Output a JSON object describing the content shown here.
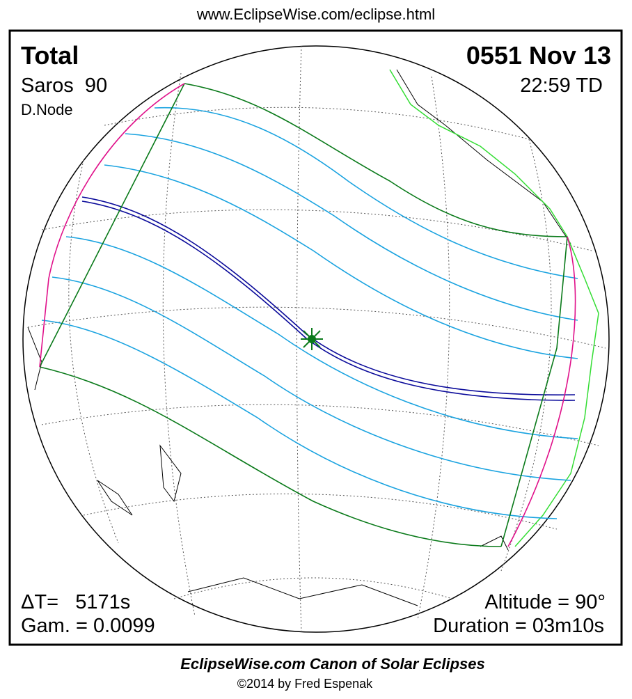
{
  "header": {
    "url": "www.EclipseWise.com/eclipse.html"
  },
  "panel": {
    "eclipse_type": "Total",
    "saros": "Saros  90",
    "node": "D.Node",
    "date": "0551 Nov 13",
    "time": "22:59 TD",
    "delta_t": "ΔT=   5171s",
    "gamma": "Gam. = 0.0099",
    "altitude": "Altitude = 90°",
    "duration": "Duration = 03m10s"
  },
  "footer": {
    "title": "EclipseWise.com Canon of Solar Eclipses",
    "copyright": "©2014 by Fred Espenak"
  }
}
